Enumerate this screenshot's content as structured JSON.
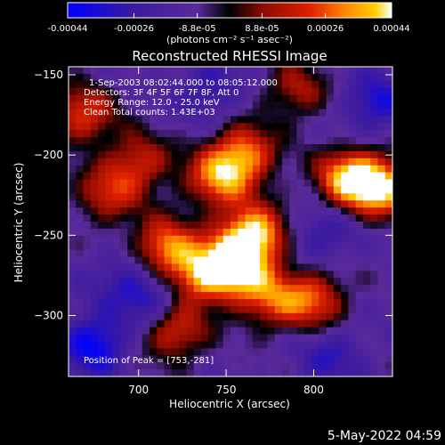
{
  "chart_data": {
    "type": "heatmap",
    "title": "Reconstructed RHESSI Image",
    "xlabel": "Heliocentric X (arcsec)",
    "ylabel": "Heliocentric Y (arcsec)",
    "xlim": [
      660,
      845
    ],
    "ylim": [
      -338,
      -145
    ],
    "x_ticks": [
      700,
      750,
      800
    ],
    "y_ticks": [
      -150,
      -200,
      -250,
      -300
    ],
    "colorbar": {
      "min": -0.00044,
      "max": 0.00044,
      "tick_labels": [
        "-0.00044",
        "-0.00026",
        "-8.8e-05",
        "8.8e-05",
        "0.00026",
        "0.00044"
      ],
      "tick_values": [
        -0.00044,
        -0.00026,
        -8.8e-05,
        8.8e-05,
        0.00026,
        0.00044
      ],
      "units_label": "(photons cm⁻² s⁻¹ asec⁻²)",
      "colors": [
        "#0000ff",
        "#3a1aa0",
        "#5a2a9a",
        "#000000",
        "#8a0a00",
        "#e02000",
        "#ff8000",
        "#ffd000",
        "#ffffff"
      ]
    },
    "annotations": [
      "1-Sep-2003 08:02:44.000 to 08:05:12.000",
      "Detectors: 3F 4F 5F 6F 7F 8F, Att 0",
      "Energy Range: 12.0 - 25.0 keV",
      "Clean    Total counts: 1.43E+03"
    ],
    "peak_label": "Position of Peak = [753,-281]",
    "peak": [
      753,
      -281
    ],
    "bright_regions": [
      {
        "x": 765,
        "y": -250,
        "value": 0.00044
      },
      {
        "x": 755,
        "y": -270,
        "value": 0.0004
      },
      {
        "x": 820,
        "y": -215,
        "value": 0.00038
      },
      {
        "x": 840,
        "y": -220,
        "value": 0.00035
      },
      {
        "x": 715,
        "y": -258,
        "value": 0.0003
      },
      {
        "x": 735,
        "y": -275,
        "value": 0.00028
      },
      {
        "x": 760,
        "y": -200,
        "value": 0.0003
      },
      {
        "x": 745,
        "y": -215,
        "value": 0.00026
      },
      {
        "x": 668,
        "y": -175,
        "value": 0.00022
      },
      {
        "x": 720,
        "y": -310,
        "value": 0.00022
      },
      {
        "x": 800,
        "y": -290,
        "value": 0.00024
      },
      {
        "x": 775,
        "y": -290,
        "value": 0.0002
      },
      {
        "x": 682,
        "y": -225,
        "value": 0.00016
      },
      {
        "x": 700,
        "y": -205,
        "value": 0.00018
      },
      {
        "x": 790,
        "y": -160,
        "value": 0.00012
      }
    ],
    "dark_regions": [
      {
        "x": 675,
        "y": -318,
        "value": -0.00044
      },
      {
        "x": 708,
        "y": -290,
        "value": -0.00036
      },
      {
        "x": 835,
        "y": -168,
        "value": -0.00036
      },
      {
        "x": 740,
        "y": -160,
        "value": -0.0003
      },
      {
        "x": 805,
        "y": -250,
        "value": -0.0003
      },
      {
        "x": 690,
        "y": -275,
        "value": -0.00026
      },
      {
        "x": 810,
        "y": -325,
        "value": -0.0003
      }
    ]
  },
  "footer": {
    "timestamp": "5-May-2022 04:59"
  }
}
